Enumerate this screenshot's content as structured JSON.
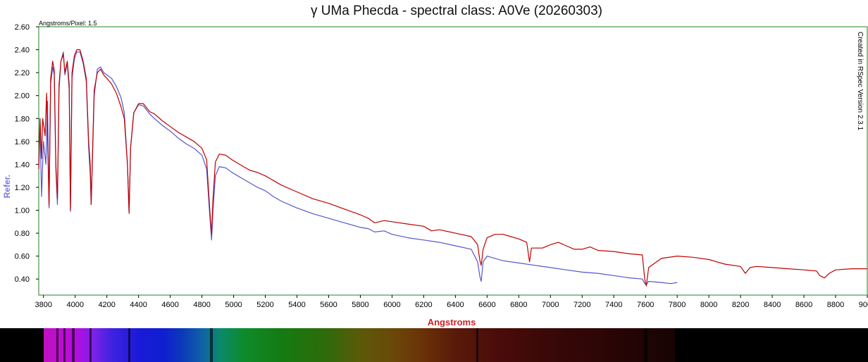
{
  "chart_data": {
    "type": "line",
    "title": "γ UMa Phecda  - spectral class: A0Ve (20260303)",
    "xlabel": "Angstroms",
    "ylabel": "Refer.",
    "pixel_scale_label": "Angstroms/Pixel: 1.5",
    "credit": "Created in RSpec Version 2.3.1",
    "xlim": [
      3770,
      9000
    ],
    "ylim": [
      0.26,
      2.6
    ],
    "x_ticks": [
      3800,
      4000,
      4200,
      4400,
      4600,
      4800,
      5000,
      5200,
      5400,
      5600,
      5800,
      6000,
      6200,
      6400,
      6600,
      6800,
      7000,
      7200,
      7400,
      7600,
      7800,
      8000,
      8200,
      8400,
      8600,
      8800,
      9000
    ],
    "y_ticks": [
      "0.40",
      "0.60",
      "0.80",
      "1.00",
      "1.20",
      "1.40",
      "1.60",
      "1.80",
      "2.00",
      "2.20",
      "2.40",
      "2.60"
    ],
    "grid": false,
    "series": [
      {
        "color": "#c00000",
        "points": [
          [
            3770,
            1.36
          ],
          [
            3778,
            1.8
          ],
          [
            3788,
            1.45
          ],
          [
            3795,
            1.8
          ],
          [
            3810,
            1.65
          ],
          [
            3820,
            2.02
          ],
          [
            3835,
            1.04
          ],
          [
            3845,
            2.15
          ],
          [
            3858,
            2.3
          ],
          [
            3868,
            2.22
          ],
          [
            3878,
            1.4
          ],
          [
            3888,
            1.1
          ],
          [
            3898,
            2.1
          ],
          [
            3910,
            2.3
          ],
          [
            3925,
            2.36
          ],
          [
            3935,
            2.2
          ],
          [
            3950,
            2.3
          ],
          [
            3962,
            2.1
          ],
          [
            3970,
            1.0
          ],
          [
            3980,
            2.2
          ],
          [
            3995,
            2.35
          ],
          [
            4010,
            2.4
          ],
          [
            4030,
            2.4
          ],
          [
            4050,
            2.3
          ],
          [
            4070,
            2.15
          ],
          [
            4085,
            1.6
          ],
          [
            4095,
            1.4
          ],
          [
            4101,
            1.05
          ],
          [
            4110,
            1.55
          ],
          [
            4120,
            2.05
          ],
          [
            4140,
            2.2
          ],
          [
            4160,
            2.23
          ],
          [
            4180,
            2.18
          ],
          [
            4200,
            2.15
          ],
          [
            4230,
            2.1
          ],
          [
            4260,
            2.02
          ],
          [
            4290,
            1.9
          ],
          [
            4310,
            1.8
          ],
          [
            4330,
            1.4
          ],
          [
            4340,
            0.98
          ],
          [
            4350,
            1.55
          ],
          [
            4370,
            1.85
          ],
          [
            4400,
            1.93
          ],
          [
            4430,
            1.93
          ],
          [
            4470,
            1.86
          ],
          [
            4500,
            1.84
          ],
          [
            4550,
            1.78
          ],
          [
            4600,
            1.73
          ],
          [
            4650,
            1.68
          ],
          [
            4700,
            1.64
          ],
          [
            4750,
            1.6
          ],
          [
            4800,
            1.54
          ],
          [
            4830,
            1.44
          ],
          [
            4850,
            1.0
          ],
          [
            4861,
            0.79
          ],
          [
            4870,
            1.1
          ],
          [
            4885,
            1.42
          ],
          [
            4910,
            1.49
          ],
          [
            4950,
            1.48
          ],
          [
            4990,
            1.44
          ],
          [
            5050,
            1.39
          ],
          [
            5100,
            1.35
          ],
          [
            5150,
            1.33
          ],
          [
            5200,
            1.3
          ],
          [
            5250,
            1.26
          ],
          [
            5300,
            1.22
          ],
          [
            5400,
            1.16
          ],
          [
            5500,
            1.1
          ],
          [
            5600,
            1.06
          ],
          [
            5700,
            1.01
          ],
          [
            5800,
            0.96
          ],
          [
            5850,
            0.93
          ],
          [
            5890,
            0.89
          ],
          [
            5950,
            0.91
          ],
          [
            6000,
            0.9
          ],
          [
            6100,
            0.88
          ],
          [
            6200,
            0.86
          ],
          [
            6250,
            0.82
          ],
          [
            6300,
            0.83
          ],
          [
            6400,
            0.8
          ],
          [
            6500,
            0.77
          ],
          [
            6540,
            0.7
          ],
          [
            6555,
            0.56
          ],
          [
            6563,
            0.52
          ],
          [
            6575,
            0.66
          ],
          [
            6600,
            0.76
          ],
          [
            6650,
            0.79
          ],
          [
            6700,
            0.79
          ],
          [
            6750,
            0.77
          ],
          [
            6800,
            0.75
          ],
          [
            6850,
            0.72
          ],
          [
            6868,
            0.55
          ],
          [
            6880,
            0.67
          ],
          [
            6950,
            0.67
          ],
          [
            7000,
            0.7
          ],
          [
            7050,
            0.72
          ],
          [
            7100,
            0.69
          ],
          [
            7150,
            0.66
          ],
          [
            7200,
            0.66
          ],
          [
            7250,
            0.68
          ],
          [
            7300,
            0.65
          ],
          [
            7400,
            0.64
          ],
          [
            7500,
            0.62
          ],
          [
            7580,
            0.61
          ],
          [
            7595,
            0.4
          ],
          [
            7605,
            0.34
          ],
          [
            7620,
            0.5
          ],
          [
            7700,
            0.58
          ],
          [
            7800,
            0.6
          ],
          [
            7900,
            0.59
          ],
          [
            8000,
            0.57
          ],
          [
            8100,
            0.53
          ],
          [
            8200,
            0.51
          ],
          [
            8230,
            0.45
          ],
          [
            8260,
            0.5
          ],
          [
            8300,
            0.51
          ],
          [
            8400,
            0.5
          ],
          [
            8500,
            0.49
          ],
          [
            8600,
            0.48
          ],
          [
            8680,
            0.47
          ],
          [
            8700,
            0.43
          ],
          [
            8730,
            0.41
          ],
          [
            8760,
            0.45
          ],
          [
            8800,
            0.48
          ],
          [
            8900,
            0.49
          ],
          [
            9000,
            0.49
          ]
        ]
      },
      {
        "color": "#5555cc",
        "points": [
          [
            3770,
            1.36
          ],
          [
            3778,
            1.75
          ],
          [
            3788,
            1.12
          ],
          [
            3800,
            1.6
          ],
          [
            3815,
            1.4
          ],
          [
            3825,
            1.95
          ],
          [
            3835,
            1.02
          ],
          [
            3845,
            2.1
          ],
          [
            3858,
            2.25
          ],
          [
            3868,
            2.18
          ],
          [
            3878,
            1.35
          ],
          [
            3888,
            1.05
          ],
          [
            3898,
            2.05
          ],
          [
            3910,
            2.3
          ],
          [
            3925,
            2.38
          ],
          [
            3935,
            2.18
          ],
          [
            3950,
            2.28
          ],
          [
            3962,
            2.05
          ],
          [
            3970,
            0.99
          ],
          [
            3980,
            2.15
          ],
          [
            3995,
            2.32
          ],
          [
            4010,
            2.38
          ],
          [
            4030,
            2.38
          ],
          [
            4050,
            2.28
          ],
          [
            4070,
            2.12
          ],
          [
            4085,
            1.55
          ],
          [
            4095,
            1.3
          ],
          [
            4101,
            1.05
          ],
          [
            4110,
            1.5
          ],
          [
            4120,
            2.0
          ],
          [
            4140,
            2.23
          ],
          [
            4160,
            2.25
          ],
          [
            4180,
            2.2
          ],
          [
            4200,
            2.18
          ],
          [
            4230,
            2.15
          ],
          [
            4260,
            2.08
          ],
          [
            4290,
            1.98
          ],
          [
            4310,
            1.85
          ],
          [
            4330,
            1.4
          ],
          [
            4340,
            0.97
          ],
          [
            4350,
            1.55
          ],
          [
            4370,
            1.85
          ],
          [
            4400,
            1.92
          ],
          [
            4430,
            1.91
          ],
          [
            4470,
            1.84
          ],
          [
            4500,
            1.8
          ],
          [
            4550,
            1.74
          ],
          [
            4600,
            1.69
          ],
          [
            4650,
            1.63
          ],
          [
            4700,
            1.58
          ],
          [
            4750,
            1.54
          ],
          [
            4800,
            1.48
          ],
          [
            4830,
            1.36
          ],
          [
            4850,
            0.95
          ],
          [
            4861,
            0.74
          ],
          [
            4870,
            1.0
          ],
          [
            4885,
            1.3
          ],
          [
            4910,
            1.38
          ],
          [
            4950,
            1.37
          ],
          [
            4990,
            1.33
          ],
          [
            5050,
            1.28
          ],
          [
            5100,
            1.24
          ],
          [
            5150,
            1.2
          ],
          [
            5200,
            1.17
          ],
          [
            5250,
            1.12
          ],
          [
            5300,
            1.08
          ],
          [
            5400,
            1.02
          ],
          [
            5500,
            0.97
          ],
          [
            5600,
            0.93
          ],
          [
            5700,
            0.89
          ],
          [
            5800,
            0.85
          ],
          [
            5850,
            0.84
          ],
          [
            5890,
            0.81
          ],
          [
            5950,
            0.82
          ],
          [
            6000,
            0.79
          ],
          [
            6100,
            0.76
          ],
          [
            6200,
            0.74
          ],
          [
            6300,
            0.72
          ],
          [
            6400,
            0.69
          ],
          [
            6500,
            0.66
          ],
          [
            6540,
            0.55
          ],
          [
            6555,
            0.42
          ],
          [
            6563,
            0.38
          ],
          [
            6575,
            0.55
          ],
          [
            6600,
            0.6
          ],
          [
            6650,
            0.58
          ],
          [
            6700,
            0.56
          ],
          [
            6800,
            0.54
          ],
          [
            6900,
            0.52
          ],
          [
            7000,
            0.5
          ],
          [
            7100,
            0.48
          ],
          [
            7200,
            0.46
          ],
          [
            7300,
            0.45
          ],
          [
            7400,
            0.43
          ],
          [
            7500,
            0.41
          ],
          [
            7580,
            0.4
          ],
          [
            7595,
            0.36
          ],
          [
            7605,
            0.35
          ],
          [
            7620,
            0.38
          ],
          [
            7700,
            0.37
          ],
          [
            7760,
            0.36
          ],
          [
            7800,
            0.37
          ]
        ]
      }
    ]
  }
}
